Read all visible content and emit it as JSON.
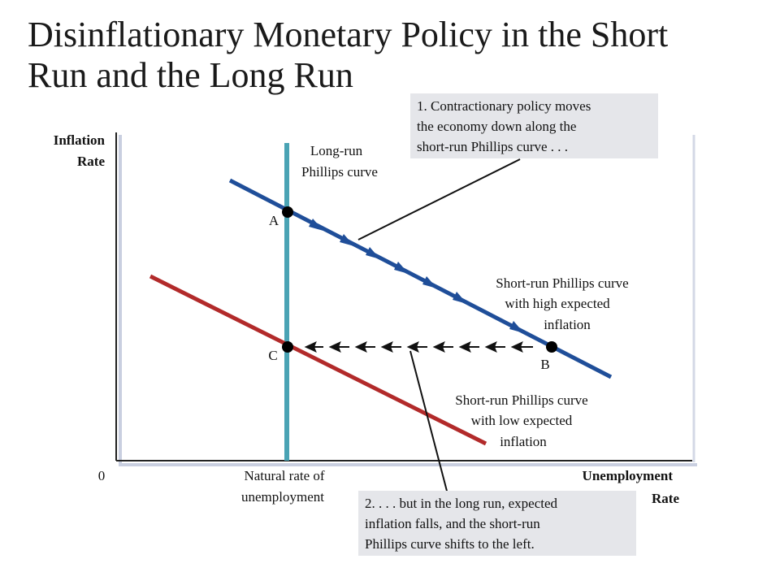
{
  "title": {
    "line1": "Disinflationary Monetary Policy in the Short",
    "line2": "Run and the Long Run"
  },
  "axes": {
    "y_label_line1": "Inflation",
    "y_label_line2": "Rate",
    "x_label_line1": "Unemployment",
    "x_label_line2": "Rate",
    "origin": "0",
    "natural_rate_line1": "Natural rate of",
    "natural_rate_line2": "unemployment"
  },
  "curves": {
    "lrpc_line1": "Long-run",
    "lrpc_line2": "Phillips curve",
    "srpc_high_line1": "Short-run Phillips curve",
    "srpc_high_line2": "with high expected",
    "srpc_high_line3": "inflation",
    "srpc_low_line1": "Short-run Phillips curve",
    "srpc_low_line2": "with low expected",
    "srpc_low_line3": "inflation"
  },
  "points": {
    "a": "A",
    "b": "B",
    "c": "C"
  },
  "callouts": {
    "one_line1": "1. Contractionary policy moves",
    "one_line2": "the economy down along the",
    "one_line3": "short-run Phillips curve . . .",
    "two_line1": "2. . . . but in the long run, expected",
    "two_line2": "inflation falls, and the short-run",
    "two_line3": "Phillips curve shifts to the left."
  },
  "colors": {
    "srpc_high": "#1f4e99",
    "srpc_low": "#b22a2a",
    "lrpc": "#4aa3b4",
    "callout_bg": "#e5e6ea",
    "axis": "#222222"
  }
}
